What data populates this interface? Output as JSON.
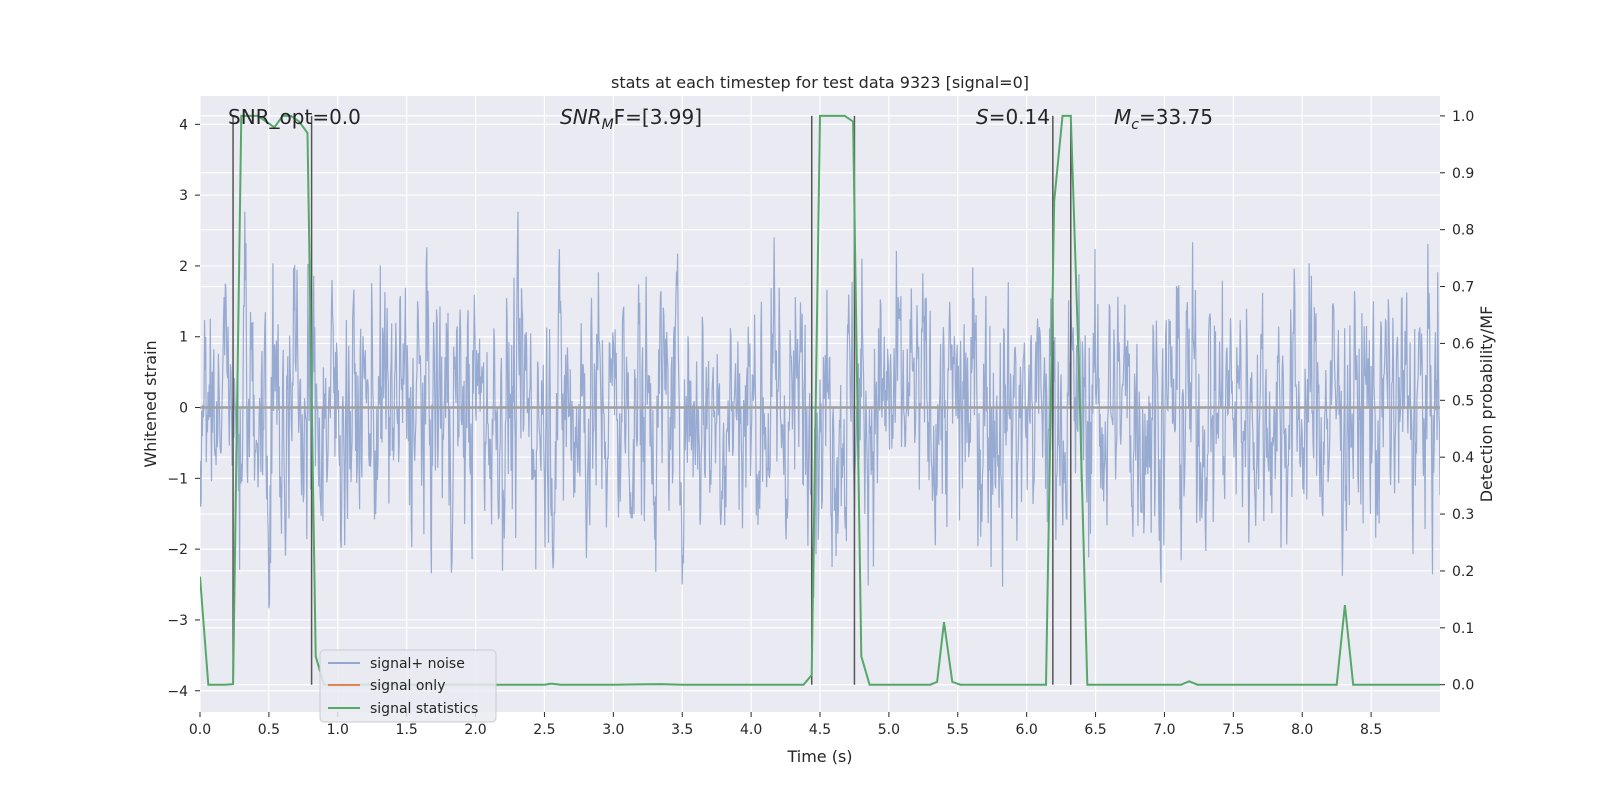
{
  "chart_data": {
    "type": "line",
    "title": "stats at each timestep for test data 9323 [signal=0]",
    "xlabel": "Time (s)",
    "ylabel": "Whitened strain",
    "y2label": "Detection probability/MF",
    "xlim": [
      0.0,
      9.0
    ],
    "ylim": [
      -4.3,
      4.4
    ],
    "y2lim": [
      -0.048,
      1.035
    ],
    "xticks": [
      "0.0",
      "0.5",
      "1.0",
      "1.5",
      "2.0",
      "2.5",
      "3.0",
      "3.5",
      "4.0",
      "4.5",
      "5.0",
      "5.5",
      "6.0",
      "6.5",
      "7.0",
      "7.5",
      "8.0",
      "8.5"
    ],
    "yticks": [
      "−4",
      "−3",
      "−2",
      "−1",
      "0",
      "1",
      "2",
      "3",
      "4"
    ],
    "y2ticks": [
      "0.0",
      "0.1",
      "0.2",
      "0.3",
      "0.4",
      "0.5",
      "0.6",
      "0.7",
      "0.8",
      "0.9",
      "1.0"
    ],
    "annotations": {
      "snr_opt": "SNR_opt=0.0",
      "snr_mf_base": "SNR",
      "snr_mf_sub": "M",
      "snr_mf_rest": "F=[3.99]",
      "s_italic": "S",
      "s_value": "=0.14",
      "mc_italic": "M",
      "mc_sub": "c",
      "mc_value": "=33.75"
    },
    "legend": {
      "placement": "lower-left",
      "entries": [
        "signal+ noise",
        "signal only",
        "signal statistics"
      ]
    },
    "colors": {
      "noise": "#92a6cf",
      "signal_only": "#dd8452",
      "statistics": "#55a868",
      "vlines": "#555555",
      "background": "#eaeaf2",
      "grid": "#ffffff"
    },
    "noise": {
      "description_series": "signal+ noise",
      "amplitude_typical": 1.0,
      "samples_per_second": 240
    },
    "signal_only": {
      "value": 0.0
    },
    "vlines": [
      0.24,
      0.81,
      4.44,
      4.75,
      6.19,
      6.32
    ],
    "statistics": {
      "x": [
        0.0,
        0.06,
        0.12,
        0.18,
        0.24,
        0.3,
        0.36,
        0.42,
        0.48,
        0.54,
        0.6,
        0.66,
        0.72,
        0.78,
        0.84,
        0.9,
        1.5,
        2.0,
        2.5,
        2.55,
        2.62,
        3.0,
        3.35,
        3.5,
        4.0,
        4.38,
        4.44,
        4.5,
        4.56,
        4.62,
        4.68,
        4.74,
        4.8,
        4.86,
        5.0,
        5.3,
        5.35,
        5.4,
        5.46,
        5.52,
        5.6,
        6.0,
        6.14,
        6.2,
        6.26,
        6.32,
        6.38,
        6.44,
        6.6,
        7.0,
        7.12,
        7.18,
        7.24,
        8.0,
        8.25,
        8.31,
        8.37,
        8.5,
        9.0
      ],
      "y": [
        0.19,
        0.0,
        0.0,
        0.0,
        0.001,
        1.0,
        1.0,
        1.0,
        0.99,
        0.98,
        1.0,
        1.0,
        0.99,
        0.97,
        0.05,
        0.0,
        0.0,
        0.0,
        0.0,
        0.002,
        0.0,
        0.0,
        0.001,
        0.0,
        0.0,
        0.0,
        0.017,
        1.0,
        1.0,
        1.0,
        1.0,
        0.99,
        0.05,
        0.0,
        0.0,
        0.0,
        0.005,
        0.11,
        0.005,
        0.0,
        0.0,
        0.0,
        0.0,
        0.85,
        1.0,
        1.0,
        0.55,
        0.0,
        0.0,
        0.0,
        0.0,
        0.006,
        0.0,
        0.0,
        0.0,
        0.14,
        0.0,
        0.0,
        0.0
      ]
    }
  }
}
